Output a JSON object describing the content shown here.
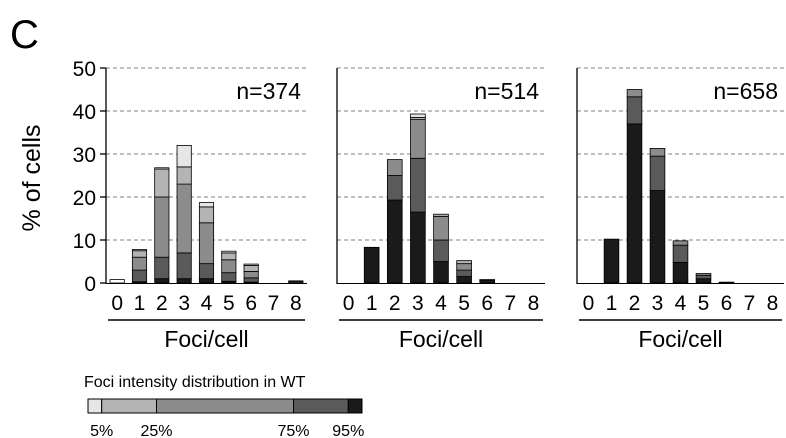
{
  "panel_label": "C",
  "ylabel": "% of cells",
  "colors": {
    "white": "#ffffff",
    "lightest": "#e6e6e6",
    "light": "#b4b4b4",
    "mid": "#8c8c8c",
    "dark": "#5a5a5a",
    "black": "#1a1a1a",
    "outline": "#000000",
    "grid": "#808080"
  },
  "chart_data": [
    {
      "type": "bar",
      "stacked": true,
      "annotation": "n=374",
      "xlabel": "Foci/cell",
      "ylabel": "% of cells",
      "ylim": [
        0,
        50
      ],
      "yticks": [
        0,
        10,
        20,
        30,
        40,
        50
      ],
      "grid": true,
      "categories": [
        "0",
        "1",
        "2",
        "3",
        "4",
        "5",
        "6",
        "7",
        "8"
      ],
      "stack_order": [
        "black",
        "dark",
        "mid",
        "light",
        "lightest",
        "white"
      ],
      "segments": {
        "black": [
          0,
          0.3,
          1,
          1,
          1,
          0.4,
          0.2,
          0,
          0
        ],
        "dark": [
          0,
          2.7,
          5,
          6,
          3.5,
          2,
          1,
          0,
          0.3
        ],
        "mid": [
          0,
          3,
          14,
          16,
          9.5,
          3,
          1.5,
          0,
          0
        ],
        "light": [
          0,
          1.5,
          6.5,
          4,
          3.7,
          1.6,
          1.4,
          0,
          0
        ],
        "lightest": [
          0,
          0.3,
          0.3,
          5,
          1,
          0.4,
          0.3,
          0,
          0.2
        ],
        "white": [
          0.8,
          0,
          0,
          0,
          0,
          0,
          0,
          0,
          0
        ]
      }
    },
    {
      "type": "bar",
      "stacked": true,
      "annotation": "n=514",
      "xlabel": "Foci/cell",
      "ylim": [
        0,
        50
      ],
      "grid": true,
      "categories": [
        "0",
        "1",
        "2",
        "3",
        "4",
        "5",
        "6",
        "7",
        "8"
      ],
      "stack_order": [
        "black",
        "dark",
        "mid",
        "light",
        "lightest",
        "white"
      ],
      "segments": {
        "black": [
          0,
          8.3,
          19.3,
          16.5,
          5,
          1.5,
          0.3,
          0,
          0
        ],
        "dark": [
          0,
          0,
          5.7,
          12.5,
          5,
          1.5,
          0.3,
          0,
          0
        ],
        "mid": [
          0,
          0,
          3.7,
          9,
          5.5,
          1.5,
          0.2,
          0,
          0
        ],
        "light": [
          0,
          0,
          0,
          0.5,
          0.5,
          0.7,
          0,
          0,
          0
        ],
        "lightest": [
          0,
          0,
          0,
          0.8,
          0,
          0,
          0,
          0,
          0
        ],
        "white": [
          0,
          0,
          0,
          0,
          0,
          0,
          0,
          0,
          0
        ]
      }
    },
    {
      "type": "bar",
      "stacked": true,
      "annotation": "n=658",
      "xlabel": "Foci/cell",
      "ylim": [
        0,
        50
      ],
      "grid": true,
      "categories": [
        "0",
        "1",
        "2",
        "3",
        "4",
        "5",
        "6",
        "7",
        "8"
      ],
      "stack_order": [
        "black",
        "dark",
        "mid",
        "light",
        "lightest",
        "white"
      ],
      "segments": {
        "black": [
          0,
          10.2,
          37,
          21.5,
          4.8,
          1,
          0.2,
          0,
          0
        ],
        "dark": [
          0,
          0,
          6.3,
          8,
          4,
          0.8,
          0,
          0,
          0
        ],
        "mid": [
          0,
          0,
          1.7,
          1.8,
          1,
          0.4,
          0,
          0,
          0
        ],
        "light": [
          0,
          0,
          0,
          0,
          0,
          0,
          0,
          0,
          0
        ],
        "lightest": [
          0,
          0,
          0,
          0,
          0,
          0,
          0,
          0,
          0
        ],
        "white": [
          0,
          0,
          0,
          0,
          0,
          0,
          0,
          0,
          0
        ]
      }
    }
  ],
  "legend": {
    "title": "Foci intensity distribution in WT",
    "bar_order": [
      "lightest",
      "light",
      "mid",
      "dark",
      "black"
    ],
    "bar_fractions": [
      0.05,
      0.2,
      0.5,
      0.2,
      0.05
    ],
    "labels": [
      "5%",
      "25%",
      "75%",
      "95%"
    ]
  }
}
